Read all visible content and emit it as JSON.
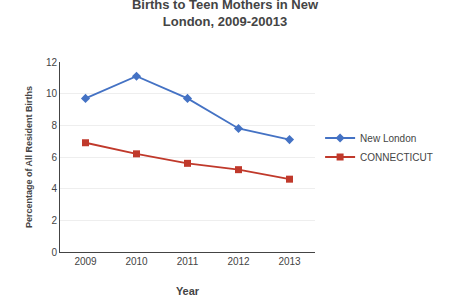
{
  "chart_data": {
    "type": "line",
    "title": "Births to Teen Mothers in New\nLondon, 2009-20013",
    "xlabel": "Year",
    "ylabel": "Percentage of All Resident Births",
    "x": [
      2009,
      2010,
      2011,
      2012,
      2013
    ],
    "xlim": [
      2008.5,
      2013.5
    ],
    "xticks": [
      2009,
      2010,
      2011,
      2012,
      2013
    ],
    "ylim": [
      0,
      12
    ],
    "yticks": [
      0,
      2,
      4,
      6,
      8,
      10,
      12
    ],
    "grid": true,
    "legend": "right",
    "series": [
      {
        "name": "New London",
        "color": "#4472C4",
        "marker": "diamond",
        "values": [
          9.7,
          11.1,
          9.7,
          7.8,
          7.1
        ]
      },
      {
        "name": "CONNECTICUT",
        "color": "#C0392B",
        "marker": "square",
        "values": [
          6.9,
          6.2,
          5.6,
          5.2,
          4.6
        ]
      }
    ]
  }
}
